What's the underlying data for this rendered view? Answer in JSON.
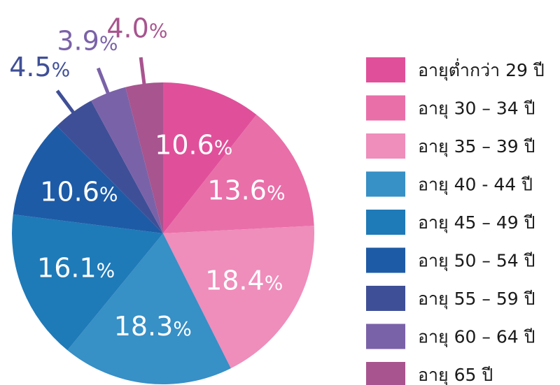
{
  "chart_data": {
    "type": "pie",
    "title": "",
    "legend_position": "right",
    "start": "top",
    "direction": "clockwise",
    "slices": [
      {
        "label": "อายุต่ำกว่า 29 ปี",
        "value": 10.6,
        "display": "10.6",
        "color": "#E0509A"
      },
      {
        "label": "อายุ 30 – 34 ปี",
        "value": 13.6,
        "display": "13.6",
        "color": "#E96FA9"
      },
      {
        "label": "อายุ 35 – 39 ปี",
        "value": 18.4,
        "display": "18.4",
        "color": "#EF8DBB"
      },
      {
        "label": "อายุ 40 - 44 ปี",
        "value": 18.3,
        "display": "18.3",
        "color": "#3790C6"
      },
      {
        "label": "อายุ 45 – 49 ปี",
        "value": 16.1,
        "display": "16.1",
        "color": "#1F7AB8"
      },
      {
        "label": "อายุ 50 – 54 ปี",
        "value": 10.6,
        "display": "10.6",
        "color": "#1E5BA6"
      },
      {
        "label": "อายุ 55 – 59 ปี",
        "value": 4.5,
        "display": "4.5",
        "color": "#3F4F97"
      },
      {
        "label": "อายุ 60 – 64 ปี",
        "value": 3.9,
        "display": "3.9",
        "color": "#7A62A8"
      },
      {
        "label": "อายุ 65 ปี",
        "value": 4.0,
        "display": "4.0",
        "color": "#A8548F"
      }
    ],
    "percent_sign": "%"
  }
}
